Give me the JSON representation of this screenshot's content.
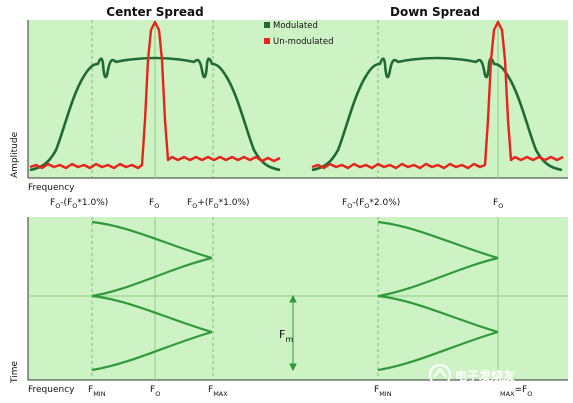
{
  "titles": {
    "center": "Center Spread",
    "down": "Down Spread"
  },
  "legend": {
    "modulated": "Modulated",
    "unmodulated": "Un-modulated"
  },
  "colors": {
    "background": "#cdf3c4",
    "modulated": "#1f6b35",
    "unmodulated": "#e8231a",
    "time_curves": "#2e9a3a",
    "guides": "#7cc86f"
  },
  "axes": {
    "amplitude": "Amplitude",
    "frequency_top": "Frequency",
    "time": "Time",
    "frequency_bottom": "Frequency"
  },
  "top_labels": {
    "center_low": {
      "a": "F",
      "a_sub": "O",
      "b": "-(F",
      "b_sub": "O",
      "c": "*1.0%)"
    },
    "center_fo": {
      "a": "F",
      "a_sub": "O"
    },
    "center_high": {
      "a": "F",
      "a_sub": "O",
      "b": "+(F",
      "b_sub": "O",
      "c": "*1.0%)"
    },
    "down_low": {
      "a": "F",
      "a_sub": "O",
      "b": "-(F",
      "b_sub": "O",
      "c": "*2.0%)"
    },
    "down_fo": {
      "a": "F",
      "a_sub": "O"
    }
  },
  "bottom_labels": {
    "center_min": {
      "a": "F",
      "a_sub": "MIN"
    },
    "center_fo": {
      "a": "F",
      "a_sub": "O"
    },
    "center_max": {
      "a": "F",
      "a_sub": "MAX"
    },
    "down_min": {
      "a": "F",
      "a_sub": "MIN"
    },
    "down_max": {
      "a": "",
      "a_sub": "MAX"
    },
    "down_fo": {
      "a": "=F",
      "a_sub": "O"
    }
  },
  "fm_label": {
    "a": "F",
    "a_sub": "m"
  },
  "watermark": "电子发烧友"
}
